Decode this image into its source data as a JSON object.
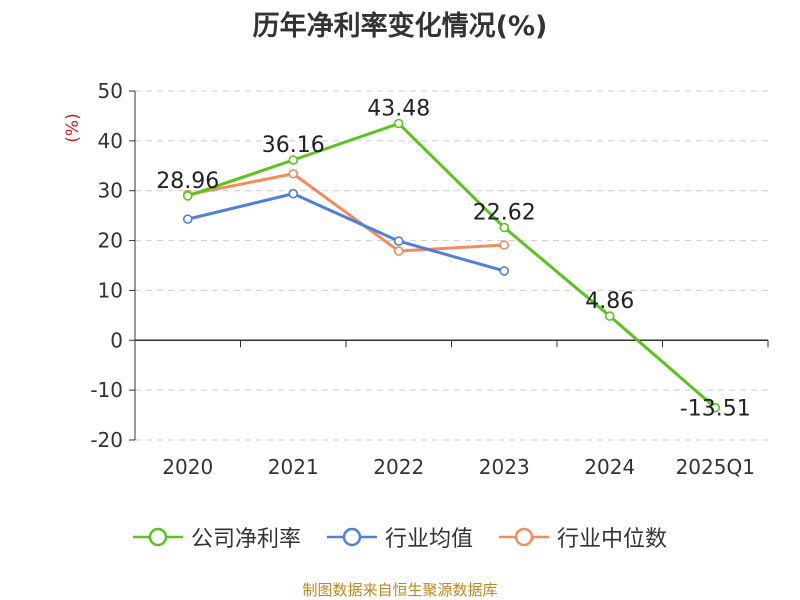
{
  "chart_data": {
    "type": "line",
    "title": "历年净利率变化情况(%)",
    "ylabel": "(%)",
    "categories": [
      "2020",
      "2021",
      "2022",
      "2023",
      "2024",
      "2025Q1"
    ],
    "ylim": [
      -20,
      50
    ],
    "yticks": [
      "50",
      "40",
      "30",
      "20",
      "10",
      "0",
      "-10",
      "-20"
    ],
    "grid": true,
    "legend_position": "bottom",
    "series": [
      {
        "name": "公司净利率",
        "color": "#5bc21f",
        "values": [
          28.96,
          36.16,
          43.48,
          22.62,
          4.86,
          -13.51
        ],
        "labels": [
          "28.96",
          "36.16",
          "43.48",
          "22.62",
          "4.86",
          "-13.51"
        ]
      },
      {
        "name": "行业均值",
        "color": "#4f7fd6",
        "values": [
          24.3,
          29.4,
          19.9,
          13.9,
          null,
          null
        ]
      },
      {
        "name": "行业中位数",
        "color": "#f28c5c",
        "values": [
          29.2,
          33.4,
          17.9,
          19.1,
          null,
          null
        ]
      }
    ]
  },
  "footer": "制图数据来自恒生聚源数据库"
}
